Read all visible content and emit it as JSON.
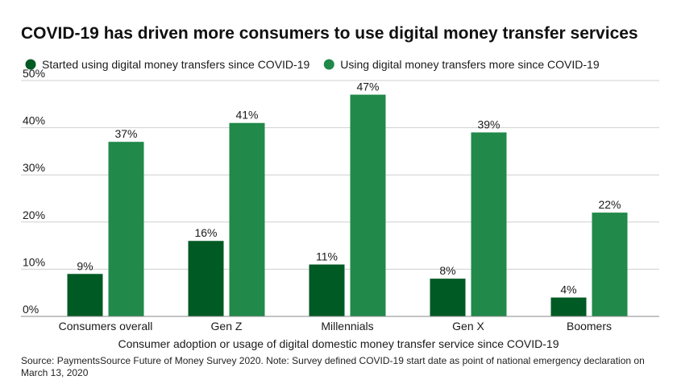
{
  "chart_data": {
    "type": "bar",
    "title": "COVID-19 has driven more consumers to use digital money transfer services",
    "xlabel": "Consumer adoption or usage of digital domestic money transfer service since COVID-19",
    "ylabel": "",
    "ylim": [
      0,
      50
    ],
    "yticks": [
      "0%",
      "10%",
      "20%",
      "30%",
      "40%",
      "50%"
    ],
    "ytick_values": [
      0,
      10,
      20,
      30,
      40,
      50
    ],
    "grid": true,
    "legend_position": "top",
    "categories": [
      "Consumers overall",
      "Gen Z",
      "Millennials",
      "Gen X",
      "Boomers"
    ],
    "series": [
      {
        "name": "Started using digital money transfers since COVID-19",
        "color": "#005a24",
        "values": [
          9,
          16,
          11,
          8,
          4
        ],
        "labels": [
          "9%",
          "16%",
          "11%",
          "8%",
          "4%"
        ]
      },
      {
        "name": "Using digital money transfers more since COVID-19",
        "color": "#21894a",
        "values": [
          37,
          41,
          47,
          39,
          22
        ],
        "labels": [
          "37%",
          "41%",
          "47%",
          "39%",
          "22%"
        ]
      }
    ]
  },
  "source": "Source: PaymentsSource Future of Money Survey 2020. Note: Survey defined COVID-19 start date as point of national emergency declaration on March 13, 2020"
}
